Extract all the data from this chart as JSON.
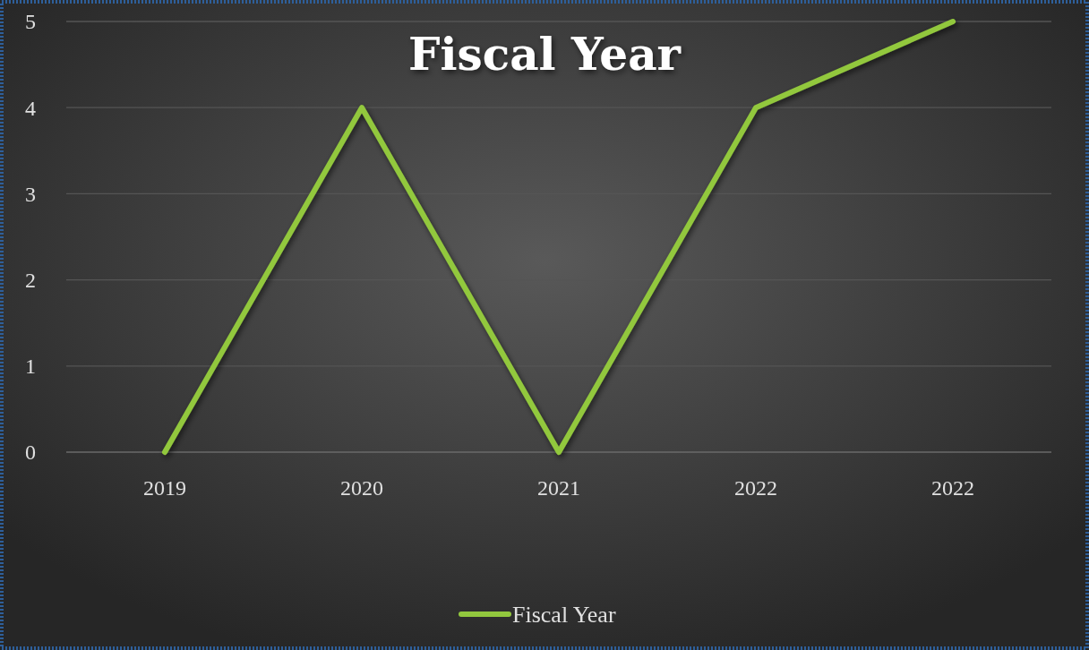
{
  "chart_data": {
    "type": "line",
    "title": "Fiscal Year",
    "categories": [
      "2019",
      "2020",
      "2021",
      "2022",
      "2022"
    ],
    "series": [
      {
        "name": "Fiscal Year",
        "color": "#92c83e",
        "values": [
          0,
          4,
          0,
          4,
          5
        ]
      }
    ],
    "ylim": [
      0,
      5
    ],
    "yticks": [
      0,
      1,
      2,
      3,
      4,
      5
    ],
    "grid": "y",
    "legend": "bottom",
    "marker": "none",
    "line_style": "solid"
  }
}
